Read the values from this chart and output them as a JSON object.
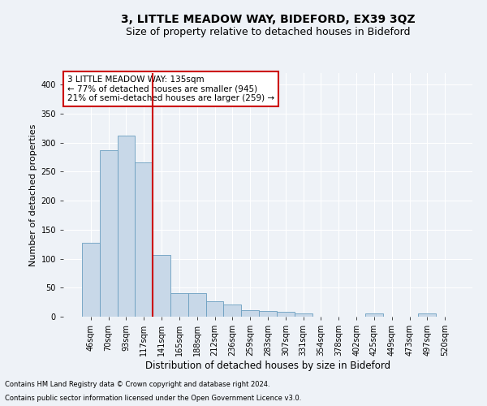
{
  "title": "3, LITTLE MEADOW WAY, BIDEFORD, EX39 3QZ",
  "subtitle": "Size of property relative to detached houses in Bideford",
  "xlabel": "Distribution of detached houses by size in Bideford",
  "ylabel": "Number of detached properties",
  "footnote1": "Contains HM Land Registry data © Crown copyright and database right 2024.",
  "footnote2": "Contains public sector information licensed under the Open Government Licence v3.0.",
  "bin_labels": [
    "46sqm",
    "70sqm",
    "93sqm",
    "117sqm",
    "141sqm",
    "165sqm",
    "188sqm",
    "212sqm",
    "236sqm",
    "259sqm",
    "283sqm",
    "307sqm",
    "331sqm",
    "354sqm",
    "378sqm",
    "402sqm",
    "425sqm",
    "449sqm",
    "473sqm",
    "497sqm",
    "520sqm"
  ],
  "bar_values": [
    128,
    287,
    312,
    266,
    106,
    41,
    41,
    26,
    21,
    11,
    10,
    8,
    5,
    0,
    0,
    0,
    5,
    0,
    0,
    5,
    0
  ],
  "bar_color": "#c8d8e8",
  "bar_edge_color": "#6a9ec0",
  "vline_color": "#cc0000",
  "annotation_text": "3 LITTLE MEADOW WAY: 135sqm\n← 77% of detached houses are smaller (945)\n21% of semi-detached houses are larger (259) →",
  "annotation_box_color": "#ffffff",
  "annotation_box_edge_color": "#cc0000",
  "ylim": [
    0,
    420
  ],
  "yticks": [
    0,
    50,
    100,
    150,
    200,
    250,
    300,
    350,
    400
  ],
  "background_color": "#eef2f7",
  "plot_background_color": "#eef2f7",
  "grid_color": "#ffffff",
  "title_fontsize": 10,
  "subtitle_fontsize": 9,
  "xlabel_fontsize": 8.5,
  "ylabel_fontsize": 8,
  "tick_fontsize": 7,
  "annotation_fontsize": 7.5,
  "footnote_fontsize": 6
}
